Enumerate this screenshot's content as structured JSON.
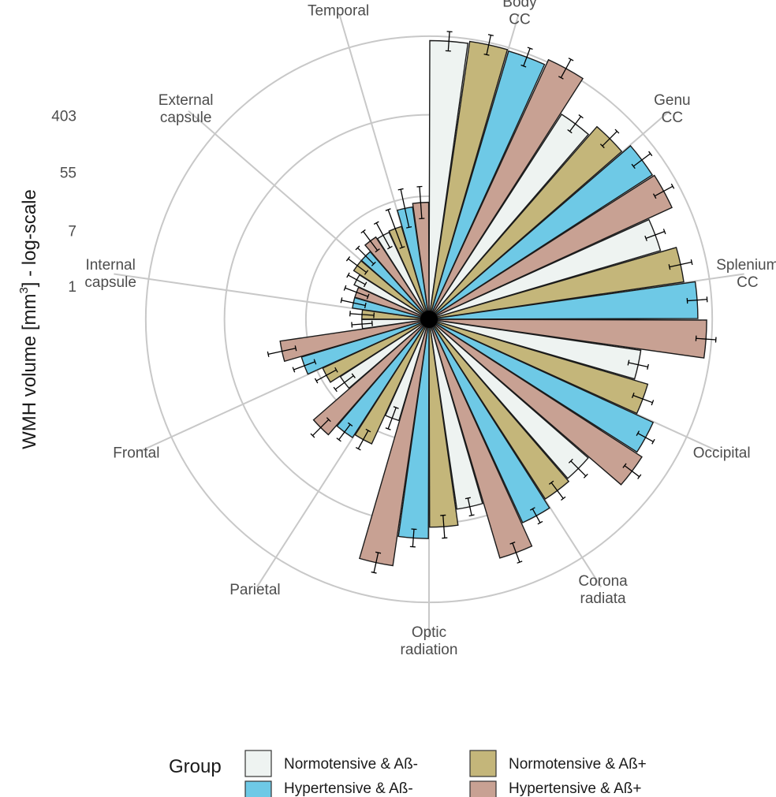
{
  "chart_data": {
    "type": "bar",
    "polar": true,
    "ylabel_main": "WMH volume [mm",
    "ylabel_sup": "3",
    "ylabel_tail": "] - log-scale",
    "y_scale": "log",
    "y_ticks": [
      "403",
      "55",
      "7",
      "1"
    ],
    "y_tick_values": [
      403,
      55,
      7,
      1
    ],
    "ylim": [
      0.35,
      1500
    ],
    "grid": true,
    "legend": {
      "title": "Group",
      "position": "bottom",
      "entries": [
        {
          "label": "Normotensive & Aß-",
          "color": "#eef3f1"
        },
        {
          "label": "Normotensive & Aß+",
          "color": "#c4b67a"
        },
        {
          "label": "Hypertensive & Aß-",
          "color": "#6ec9e6"
        },
        {
          "label": "Hypertensive & Aß+",
          "color": "#c8a193"
        }
      ]
    },
    "categories": [
      {
        "lines": [
          "Body",
          "CC"
        ]
      },
      {
        "lines": [
          "Genu",
          "CC"
        ]
      },
      {
        "lines": [
          "Splenium",
          "CC"
        ]
      },
      {
        "lines": [
          "Occipital"
        ]
      },
      {
        "lines": [
          "Corona",
          "radiata"
        ]
      },
      {
        "lines": [
          "Optic",
          "radiation"
        ]
      },
      {
        "lines": [
          "Parietal"
        ]
      },
      {
        "lines": [
          "Frontal"
        ]
      },
      {
        "lines": [
          "Internal",
          "capsule"
        ]
      },
      {
        "lines": [
          "External",
          "capsule"
        ]
      },
      {
        "lines": [
          "Temporal"
        ]
      }
    ],
    "series": [
      {
        "name": "Normotensive & Aß-",
        "color": "#eef3f1",
        "values": [
          360,
          150,
          140,
          70,
          65,
          40,
          4.5,
          4.5,
          1.7,
          2.5,
          3.5
        ],
        "err_upper": [
          460,
          190,
          180,
          90,
          85,
          50,
          6,
          6,
          2.2,
          3.2,
          5
        ]
      },
      {
        "name": "Normotensive & Aß+",
        "color": "#c4b67a",
        "values": [
          380,
          200,
          210,
          100,
          70,
          60,
          10,
          6,
          1.7,
          3,
          3.6
        ],
        "err_upper": [
          490,
          260,
          280,
          130,
          90,
          80,
          13,
          8,
          2.3,
          4,
          6
        ]
      },
      {
        "name": "Hypertensive & Aß-",
        "color": "#6ec9e6",
        "values": [
          370,
          260,
          280,
          160,
          90,
          80,
          11,
          9,
          2.2,
          3,
          5.5
        ],
        "err_upper": [
          470,
          340,
          360,
          200,
          110,
          100,
          14,
          12,
          3,
          4,
          9
        ]
      },
      {
        "name": "Hypertensive & Aß+",
        "color": "#c8a193",
        "values": [
          430,
          270,
          350,
          190,
          170,
          170,
          15,
          14,
          2.2,
          3.7,
          6
        ],
        "err_upper": [
          560,
          350,
          450,
          240,
          220,
          220,
          20,
          20,
          3,
          5,
          9
        ]
      }
    ]
  }
}
